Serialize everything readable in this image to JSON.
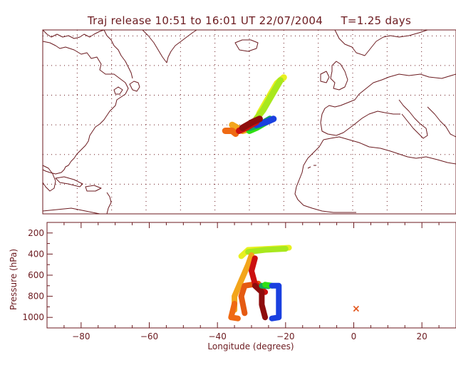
{
  "title": "Traj release 10:51 to 16:01 UT 22/07/2004     T=1.25 days",
  "colors": {
    "frame": "#6b1a1f",
    "grid": "#6b1a1f",
    "coast": "#6b1a1f",
    "marker": "#e2551b"
  },
  "chart_data": [
    {
      "type": "map",
      "panel": "trajectory map",
      "extent_lon": [
        -90,
        30
      ],
      "extent_lat": [
        0,
        62
      ],
      "grid": true,
      "trajectories": [
        {
          "color": "#e8f020",
          "points": [
            [
              -20,
              46
            ],
            [
              -22,
              44
            ],
            [
              -24,
              40
            ],
            [
              -27,
              34
            ],
            [
              -28,
              31
            ]
          ]
        },
        {
          "color": "#a8e81e",
          "points": [
            [
              -21,
              45
            ],
            [
              -23,
              41
            ],
            [
              -26,
              35
            ],
            [
              -28,
              32
            ]
          ]
        },
        {
          "color": "#f3a51b",
          "points": [
            [
              -35,
              30
            ],
            [
              -32,
              28
            ],
            [
              -29,
              29
            ]
          ]
        },
        {
          "color": "#ef6a13",
          "points": [
            [
              -37,
              28
            ],
            [
              -35,
              28
            ],
            [
              -34,
              27
            ]
          ]
        },
        {
          "color": "#2ee014",
          "points": [
            [
              -30,
              28
            ],
            [
              -28,
              29
            ],
            [
              -25,
              31
            ]
          ]
        },
        {
          "color": "#11a85a",
          "points": [
            [
              -30,
              29
            ],
            [
              -27,
              30
            ],
            [
              -24,
              32
            ]
          ]
        },
        {
          "color": "#1a40e0",
          "points": [
            [
              -28,
              30
            ],
            [
              -25,
              31
            ],
            [
              -23,
              32
            ]
          ]
        },
        {
          "color": "#cc1010",
          "points": [
            [
              -33,
              28
            ],
            [
              -31,
              29
            ],
            [
              -28,
              31
            ]
          ]
        },
        {
          "color": "#8e0d0d",
          "points": [
            [
              -32,
              29
            ],
            [
              -29,
              31
            ],
            [
              -27,
              32
            ]
          ]
        }
      ]
    },
    {
      "type": "line",
      "panel": "pressure cross-section",
      "xlabel": "Longitude  (degrees)",
      "ylabel": "Pressure  (hPa)",
      "xlim": [
        -90,
        30
      ],
      "ylim": [
        1100,
        100
      ],
      "xticks": [
        -80,
        -60,
        -40,
        -20,
        0,
        20
      ],
      "xtick_labels": [
        "−80",
        "−60",
        "−40",
        "−20",
        "0",
        "20"
      ],
      "yticks": [
        200,
        400,
        600,
        800,
        1000
      ],
      "ytick_labels": [
        "200",
        "400",
        "600",
        "800",
        "1000"
      ],
      "series": [
        {
          "color": "#e8f020",
          "points": [
            [
              -19,
              340
            ],
            [
              -25,
              350
            ],
            [
              -31,
              360
            ],
            [
              -33,
              420
            ]
          ]
        },
        {
          "color": "#a8e81e",
          "points": [
            [
              -20,
              350
            ],
            [
              -26,
              360
            ],
            [
              -31,
              380
            ]
          ]
        },
        {
          "color": "#f3a51b",
          "points": [
            [
              -30,
              410
            ],
            [
              -31,
              500
            ],
            [
              -33,
              650
            ],
            [
              -35,
              800
            ],
            [
              -35,
              930
            ]
          ]
        },
        {
          "color": "#ef6a13",
          "points": [
            [
              -35,
              870
            ],
            [
              -36,
              1000
            ],
            [
              -34,
              1010
            ]
          ]
        },
        {
          "color": "#e55a12",
          "points": [
            [
              -28,
              680
            ],
            [
              -32,
              700
            ],
            [
              -33,
              800
            ],
            [
              -32,
              960
            ]
          ]
        },
        {
          "color": "#cc1010",
          "points": [
            [
              -29,
              440
            ],
            [
              -30,
              560
            ],
            [
              -29,
              680
            ],
            [
              -27,
              740
            ],
            [
              -26,
              760
            ]
          ]
        },
        {
          "color": "#8e0d0d",
          "points": [
            [
              -29,
              700
            ],
            [
              -27,
              760
            ],
            [
              -27,
              880
            ],
            [
              -26,
              1000
            ]
          ]
        },
        {
          "color": "#11a85a",
          "points": [
            [
              -27,
              700
            ],
            [
              -25,
              705
            ]
          ]
        },
        {
          "color": "#2ee014",
          "points": [
            [
              -26,
              690
            ],
            [
              -24,
              700
            ]
          ]
        },
        {
          "color": "#1a40e0",
          "points": [
            [
              -24,
              700
            ],
            [
              -22,
              700
            ],
            [
              -22,
              800
            ],
            [
              -22,
              1000
            ],
            [
              -24,
              1010
            ]
          ]
        }
      ],
      "markers": [
        {
          "label": "",
          "x": 0.7,
          "y": 915,
          "symbol": "×"
        }
      ]
    }
  ]
}
